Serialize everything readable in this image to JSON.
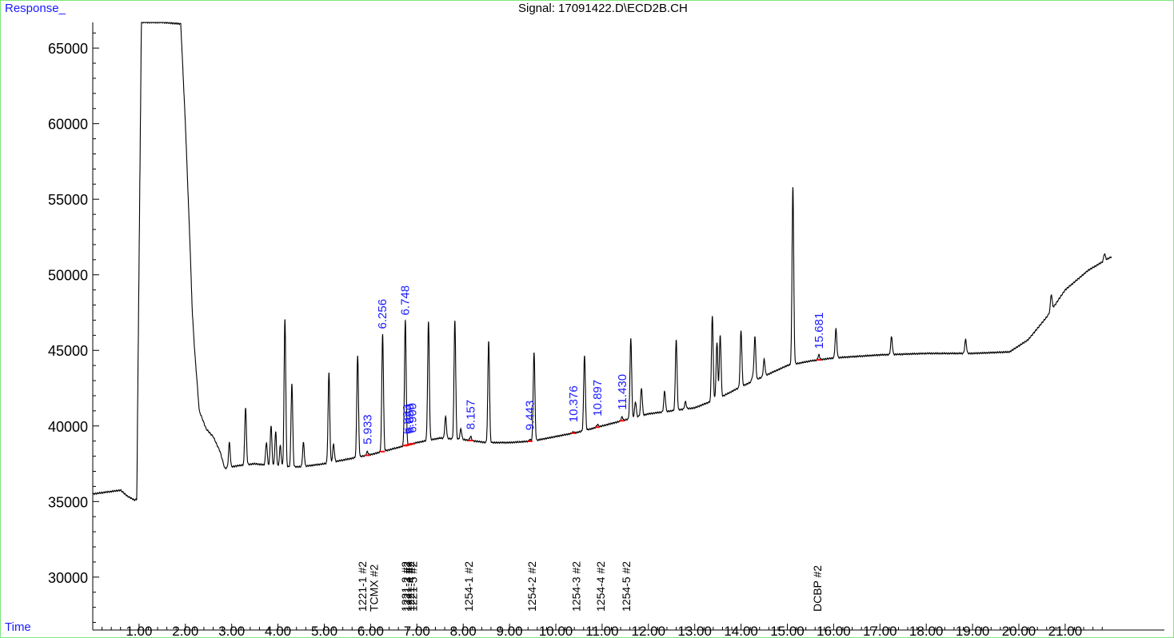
{
  "header": {
    "y_axis_title": "Response_",
    "signal_title": "Signal: 17091422.D\\ECD2B.CH",
    "x_axis_title": "Time"
  },
  "colors": {
    "frame": "#7fe57f",
    "axis_title": "#1a1aff",
    "trace": "#000000",
    "peak_label": "#1a1aff",
    "integration_mark": "#ff0000"
  },
  "chart_data": {
    "type": "line",
    "title": "Signal: 17091422.D\\ECD2B.CH",
    "xlabel": "Time",
    "ylabel": "Response_",
    "xlim": [
      0.0,
      22.0
    ],
    "ylim": [
      26500,
      66700
    ],
    "x_ticks": [
      1,
      2,
      3,
      4,
      5,
      6,
      7,
      8,
      9,
      10,
      11,
      12,
      13,
      14,
      15,
      16,
      17,
      18,
      19,
      20,
      21
    ],
    "x_tick_labels": [
      "1.00",
      "2.00",
      "3.00",
      "4.00",
      "5.00",
      "6.00",
      "7.00",
      "8.00",
      "9.00",
      "10.00",
      "11.00",
      "12.00",
      "13.00",
      "14.00",
      "15.00",
      "16.00",
      "17.00",
      "18.00",
      "19.00",
      "20.00",
      "21.00"
    ],
    "y_ticks": [
      30000,
      35000,
      40000,
      45000,
      50000,
      55000,
      60000,
      65000
    ],
    "y_tick_labels": [
      "30000",
      "35000",
      "40000",
      "45000",
      "50000",
      "55000",
      "60000",
      "65000"
    ],
    "series": [
      {
        "baseline": [
          [
            0.0,
            35500
          ],
          [
            0.6,
            35750
          ],
          [
            0.75,
            35350
          ],
          [
            0.9,
            35100
          ],
          [
            0.95,
            35150
          ],
          [
            1.05,
            66700
          ],
          [
            1.5,
            66700
          ],
          [
            1.9,
            66600
          ],
          [
            2.0,
            60000
          ],
          [
            2.1,
            52000
          ],
          [
            2.15,
            47500
          ],
          [
            2.2,
            45000
          ],
          [
            2.3,
            41000
          ],
          [
            2.45,
            39800
          ],
          [
            2.6,
            39300
          ],
          [
            2.75,
            38300
          ],
          [
            2.85,
            37200
          ],
          [
            3.0,
            37300
          ],
          [
            3.2,
            37400
          ],
          [
            3.5,
            37500
          ],
          [
            4.0,
            37300
          ],
          [
            4.5,
            37300
          ],
          [
            5.0,
            37500
          ],
          [
            5.5,
            37800
          ],
          [
            6.0,
            38100
          ],
          [
            6.5,
            38500
          ],
          [
            7.0,
            38900
          ],
          [
            7.5,
            39200
          ],
          [
            8.0,
            39100
          ],
          [
            8.5,
            38900
          ],
          [
            9.0,
            38900
          ],
          [
            9.5,
            39000
          ],
          [
            10.0,
            39300
          ],
          [
            10.5,
            39600
          ],
          [
            11.0,
            40000
          ],
          [
            11.5,
            40400
          ],
          [
            12.0,
            40800
          ],
          [
            12.5,
            41000
          ],
          [
            13.0,
            41200
          ],
          [
            13.5,
            41800
          ],
          [
            14.0,
            42600
          ],
          [
            14.5,
            43300
          ],
          [
            15.0,
            44000
          ],
          [
            15.5,
            44300
          ],
          [
            16.0,
            44500
          ],
          [
            16.5,
            44600
          ],
          [
            17.0,
            44700
          ],
          [
            18.0,
            44800
          ],
          [
            19.0,
            44800
          ],
          [
            19.8,
            44900
          ],
          [
            20.2,
            45700
          ],
          [
            20.6,
            47200
          ],
          [
            21.0,
            49000
          ],
          [
            21.5,
            50300
          ],
          [
            22.0,
            51200
          ]
        ],
        "peaks": [
          [
            2.15,
            47500
          ],
          [
            2.95,
            38900
          ],
          [
            3.3,
            41200
          ],
          [
            3.75,
            38900
          ],
          [
            3.85,
            40000
          ],
          [
            3.95,
            39600
          ],
          [
            4.05,
            38700
          ],
          [
            4.15,
            47100
          ],
          [
            4.3,
            42800
          ],
          [
            4.55,
            38900
          ],
          [
            5.1,
            43500
          ],
          [
            5.2,
            38800
          ],
          [
            5.72,
            44700
          ],
          [
            5.93,
            38300
          ],
          [
            6.26,
            46100
          ],
          [
            6.75,
            47000
          ],
          [
            7.25,
            46900
          ],
          [
            7.62,
            40600
          ],
          [
            7.82,
            47000
          ],
          [
            7.95,
            39800
          ],
          [
            8.16,
            39300
          ],
          [
            8.55,
            45600
          ],
          [
            9.44,
            39100
          ],
          [
            9.53,
            44900
          ],
          [
            10.38,
            39600
          ],
          [
            10.62,
            44700
          ],
          [
            10.9,
            40100
          ],
          [
            11.43,
            40600
          ],
          [
            11.62,
            45800
          ],
          [
            11.72,
            41600
          ],
          [
            11.85,
            42500
          ],
          [
            12.35,
            42300
          ],
          [
            12.6,
            45700
          ],
          [
            12.8,
            41600
          ],
          [
            13.38,
            47300
          ],
          [
            13.48,
            45500
          ],
          [
            13.55,
            46000
          ],
          [
            14.0,
            46300
          ],
          [
            14.25,
            43300
          ],
          [
            14.3,
            45900
          ],
          [
            14.5,
            44400
          ],
          [
            15.12,
            55800
          ],
          [
            15.68,
            44700
          ],
          [
            16.05,
            46400
          ],
          [
            17.25,
            45900
          ],
          [
            18.85,
            45700
          ],
          [
            20.7,
            48700
          ],
          [
            21.85,
            51400
          ]
        ]
      }
    ],
    "peak_labels": [
      {
        "x": 5.933,
        "label": "5.933"
      },
      {
        "x": 6.256,
        "label": "6.256"
      },
      {
        "x": 6.748,
        "label": "6.748"
      },
      {
        "x": 6.79,
        "label": "6.833"
      },
      {
        "x": 6.84,
        "label": "6.850"
      },
      {
        "x": 6.9,
        "label": "6.900"
      },
      {
        "x": 8.157,
        "label": "8.157"
      },
      {
        "x": 9.443,
        "label": "9.443"
      },
      {
        "x": 10.376,
        "label": "10.376"
      },
      {
        "x": 10.897,
        "label": "10.897"
      },
      {
        "x": 11.43,
        "label": "11.430"
      },
      {
        "x": 15.681,
        "label": "15.681"
      }
    ],
    "compound_labels": [
      {
        "x": 5.82,
        "label": "1221-1 #2"
      },
      {
        "x": 6.07,
        "label": "TCMX #2"
      },
      {
        "x": 6.75,
        "label": "1221-2 #2"
      },
      {
        "x": 6.8,
        "label": "1221-3 #2"
      },
      {
        "x": 6.86,
        "label": "1221-4 #2"
      },
      {
        "x": 6.92,
        "label": "1221-5 #2"
      },
      {
        "x": 8.12,
        "label": "1254-1 #2"
      },
      {
        "x": 9.48,
        "label": "1254-2 #2"
      },
      {
        "x": 10.44,
        "label": "1254-3 #2"
      },
      {
        "x": 10.97,
        "label": "1254-4 #2"
      },
      {
        "x": 11.52,
        "label": "1254-5 #2"
      },
      {
        "x": 15.65,
        "label": "DCBP #2"
      }
    ]
  }
}
